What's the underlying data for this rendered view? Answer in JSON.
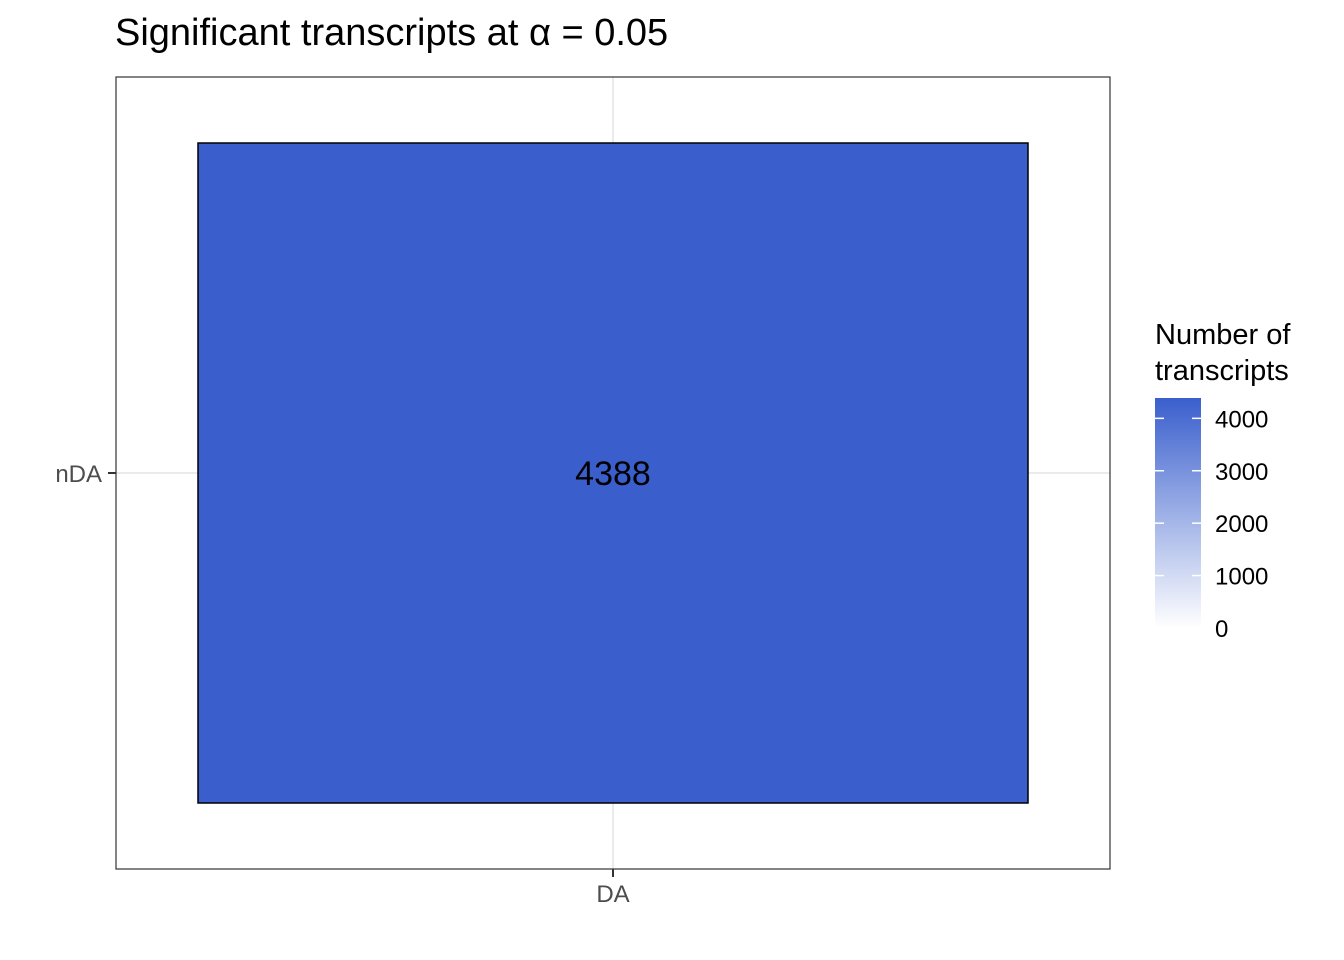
{
  "chart_data": {
    "type": "heatmap",
    "title": "Significant transcripts at  α  =  0.05",
    "xlabel": "",
    "ylabel": "",
    "x_categories": [
      "DA"
    ],
    "y_categories": [
      "nDA"
    ],
    "cells": [
      {
        "x": "DA",
        "y": "nDA",
        "value": 4388,
        "label": "4388"
      }
    ],
    "grid": true,
    "legend": {
      "title_lines": [
        "Number of",
        "transcripts"
      ],
      "placement": "right",
      "type": "colorbar",
      "range": [
        0,
        4388
      ],
      "breaks": [
        0,
        1000,
        2000,
        3000,
        4000
      ],
      "break_labels": [
        "0",
        "1000",
        "2000",
        "3000",
        "4000"
      ],
      "low_color": "#ffffff",
      "high_color": "#3a5fcd"
    }
  }
}
